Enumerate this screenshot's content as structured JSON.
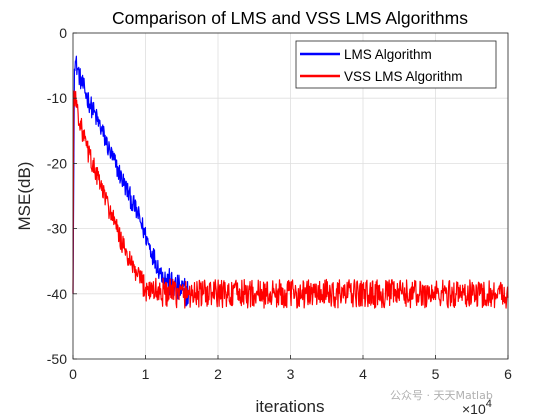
{
  "chart_data": {
    "type": "line",
    "title": "Comparison of LMS and VSS LMS Algorithms",
    "xlabel": "iterations",
    "ylabel": "MSE(dB)",
    "x_exponent_label": "×10",
    "x_exponent_power": "4",
    "xlim": [
      0,
      6
    ],
    "ylim": [
      -50,
      0
    ],
    "xticks": [
      0,
      1,
      2,
      3,
      4,
      5,
      6
    ],
    "yticks": [
      0,
      -10,
      -20,
      -30,
      -40,
      -50
    ],
    "grid": true,
    "legend_position": "top-right",
    "series": [
      {
        "name": "LMS Algorithm",
        "color": "#0000ff",
        "x": [
          0.0,
          0.02,
          0.05,
          0.1,
          0.2,
          0.3,
          0.4,
          0.5,
          0.6,
          0.7,
          0.8,
          0.9,
          1.0,
          1.1,
          1.2,
          1.3,
          1.4,
          1.5,
          1.6
        ],
        "y": [
          -40,
          -4,
          -5,
          -7,
          -10,
          -12.5,
          -15,
          -18,
          -20.5,
          -23,
          -25.5,
          -28,
          -31,
          -34,
          -36.5,
          -38,
          -39,
          -39.5,
          -39.8
        ]
      },
      {
        "name": "VSS LMS Algorithm",
        "color": "#ff0000",
        "x": [
          0.0,
          0.01,
          0.03,
          0.05,
          0.1,
          0.2,
          0.3,
          0.4,
          0.5,
          0.6,
          0.7,
          0.8,
          0.9,
          1.0,
          1.2,
          1.5,
          2.0,
          3.0,
          4.0,
          5.0,
          6.0
        ],
        "y": [
          -40,
          -9,
          -10,
          -11,
          -14,
          -18,
          -21,
          -24,
          -27,
          -30,
          -33,
          -35.5,
          -37.5,
          -39,
          -39.8,
          -40,
          -40,
          -40,
          -40,
          -40,
          -40
        ]
      }
    ]
  },
  "watermark": "公众号 · 天天Matlab"
}
